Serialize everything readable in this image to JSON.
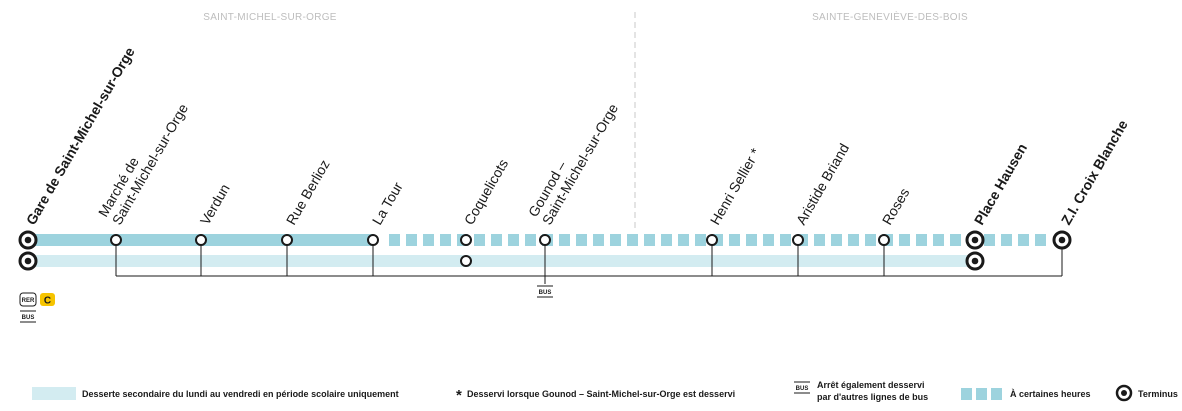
{
  "communes": {
    "left": "SAINT-MICHEL-SUR-ORGE",
    "right": "SAINTE-GENEVIÈVE-DES-BOIS"
  },
  "stops": [
    {
      "id": "gare",
      "label": "Gare de Saint-Michel-sur-Orge",
      "bold": true,
      "terminus": true
    },
    {
      "id": "marche",
      "label_lines": [
        "Marché de",
        "Saint-Michel-sur-Orge"
      ],
      "bold": false
    },
    {
      "id": "verdun",
      "label": "Verdun",
      "bold": false
    },
    {
      "id": "berlioz",
      "label": "Rue Berlioz",
      "bold": false
    },
    {
      "id": "latour",
      "label": "La Tour",
      "bold": false
    },
    {
      "id": "coquelicots",
      "label": "Coquelicots",
      "bold": false
    },
    {
      "id": "gounod",
      "label_lines": [
        "Gounod –",
        "Saint-Michel-sur-Orge"
      ],
      "bold": false
    },
    {
      "id": "sellier",
      "label": "Henri Sellier *",
      "bold": false
    },
    {
      "id": "briand",
      "label": "Aristide Briand",
      "bold": false
    },
    {
      "id": "roses",
      "label": "Roses",
      "bold": false
    },
    {
      "id": "hausen",
      "label": "Place Hausen",
      "bold": true,
      "terminus": true
    },
    {
      "id": "croix",
      "label": "Z.I. Croix Blanche",
      "bold": true,
      "terminus": true
    }
  ],
  "connections": {
    "rer_badge": "RER",
    "rer_line": "C",
    "bus_badge": "BUS"
  },
  "colors": {
    "main_line": "#9dd3de",
    "secondary_line": "#d3ecf1",
    "rer_c": "#f6c400",
    "ink": "#1a1a1a"
  },
  "legend": {
    "secondary": "Desserte secondaire du lundi au vendredi en période scolaire uniquement",
    "asterisk_symbol": "*",
    "asterisk": "Desservi lorsque Gounod – Saint-Michel-sur-Orge est desservi",
    "bus_badge": "BUS",
    "bus_line1": "Arrêt également desservi",
    "bus_line2": "par d'autres lignes de bus",
    "certain_hours": "À certaines heures",
    "terminus": "Terminus"
  }
}
